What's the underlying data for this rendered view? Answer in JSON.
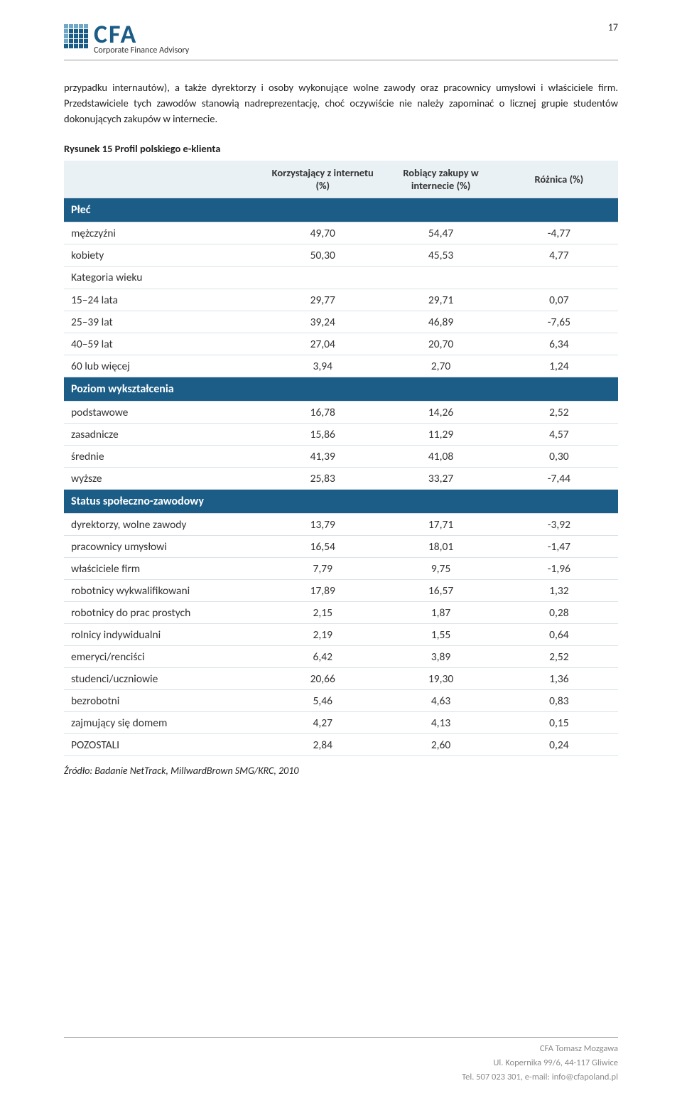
{
  "page_number": "17",
  "logo": {
    "cfa": "CFA",
    "sub": "Corporate Finance Advisory"
  },
  "paragraph": "przypadku internautów), a także dyrektorzy i osoby wykonujące wolne zawody oraz pracownicy umysłowi i właściciele firm. Przedstawiciele tych zawodów stanowią nadreprezentację, choć oczywiście nie należy zapominać o licznej grupie studentów dokonujących zakupów w internecie.",
  "figure_title": "Rysunek 15 Profil polskiego e-klienta",
  "table": {
    "columns": [
      "",
      "Korzystający z internetu (%)",
      "Robiący zakupy w internecie (%)",
      "Różnica (%)"
    ],
    "header_bg": "#e9f1f4",
    "section_bg": "#1b5d87",
    "section_color": "#ffffff",
    "row_border": "#d9e3e8",
    "col_widths": [
      "36%",
      "21.3%",
      "21.3%",
      "21.3%"
    ],
    "font_size": 15.5,
    "sections": [
      {
        "title": "Płeć",
        "rows": [
          {
            "label": "mężczyźni",
            "v": [
              "49,70",
              "54,47",
              "-4,77"
            ]
          },
          {
            "label": "kobiety",
            "v": [
              "50,30",
              "45,53",
              "4,77"
            ]
          }
        ]
      },
      {
        "subhead": "Kategoria wieku",
        "rows": [
          {
            "label": "15–24 lata",
            "v": [
              "29,77",
              "29,71",
              "0,07"
            ]
          },
          {
            "label": "25–39 lat",
            "v": [
              "39,24",
              "46,89",
              "-7,65"
            ]
          },
          {
            "label": "40–59 lat",
            "v": [
              "27,04",
              "20,70",
              "6,34"
            ]
          },
          {
            "label": "60 lub więcej",
            "v": [
              "3,94",
              "2,70",
              "1,24"
            ]
          }
        ]
      },
      {
        "title": "Poziom wykształcenia",
        "rows": [
          {
            "label": "podstawowe",
            "v": [
              "16,78",
              "14,26",
              "2,52"
            ]
          },
          {
            "label": "zasadnicze",
            "v": [
              "15,86",
              "11,29",
              "4,57"
            ]
          },
          {
            "label": "średnie",
            "v": [
              "41,39",
              "41,08",
              "0,30"
            ]
          },
          {
            "label": "wyższe",
            "v": [
              "25,83",
              "33,27",
              "-7,44"
            ]
          }
        ]
      },
      {
        "title": "Status społeczno-zawodowy",
        "rows": [
          {
            "label": "dyrektorzy, wolne zawody",
            "v": [
              "13,79",
              "17,71",
              "-3,92"
            ]
          },
          {
            "label": "pracownicy umysłowi",
            "v": [
              "16,54",
              "18,01",
              "-1,47"
            ]
          },
          {
            "label": "właściciele firm",
            "v": [
              "7,79",
              "9,75",
              "-1,96"
            ]
          },
          {
            "label": "robotnicy wykwalifikowani",
            "v": [
              "17,89",
              "16,57",
              "1,32"
            ]
          },
          {
            "label": "robotnicy do prac prostych",
            "v": [
              "2,15",
              "1,87",
              "0,28"
            ]
          },
          {
            "label": "rolnicy indywidualni",
            "v": [
              "2,19",
              "1,55",
              "0,64"
            ]
          },
          {
            "label": "emeryci/renciści",
            "v": [
              "6,42",
              "3,89",
              "2,52"
            ]
          },
          {
            "label": "studenci/uczniowie",
            "v": [
              "20,66",
              "19,30",
              "1,36"
            ]
          },
          {
            "label": "bezrobotni",
            "v": [
              "5,46",
              "4,63",
              "0,83"
            ]
          },
          {
            "label": "zajmujący się domem",
            "v": [
              "4,27",
              "4,13",
              "0,15"
            ]
          },
          {
            "label": "POZOSTALI",
            "v": [
              "2,84",
              "2,60",
              "0,24"
            ]
          }
        ]
      }
    ]
  },
  "source": "Źródło: Badanie NetTrack, MillwardBrown SMG/KRC, 2010",
  "footer": {
    "line1": "CFA Tomasz Mozgawa",
    "line2": "Ul. Kopernika 99/6, 44-117 Gliwice",
    "line3": "Tel. 507 023 301, e-mail: info@cfapoland.pl"
  }
}
